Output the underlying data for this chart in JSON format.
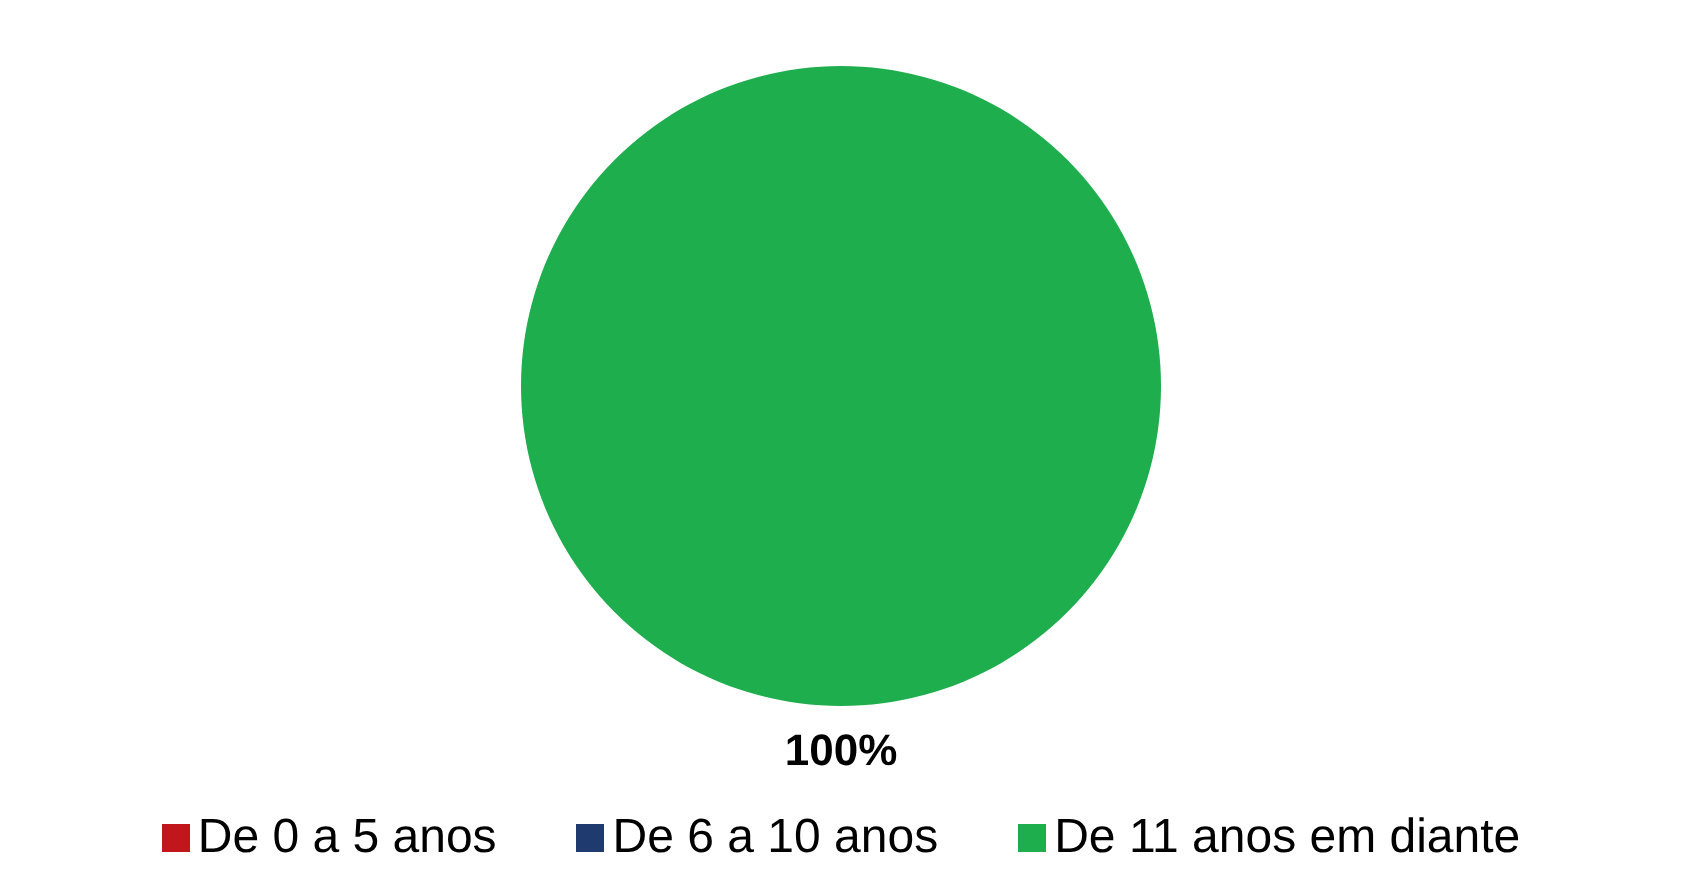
{
  "chart_data": {
    "type": "pie",
    "categories": [
      "De 0 a 5 anos",
      "De 6 a 10 anos",
      "De 11 anos em diante"
    ],
    "values": [
      0,
      0,
      100
    ],
    "colors": [
      "#c0161c",
      "#1f3a6e",
      "#1fae4e"
    ],
    "value_labels": [
      null,
      null,
      "100%"
    ],
    "legend": "bottom"
  }
}
